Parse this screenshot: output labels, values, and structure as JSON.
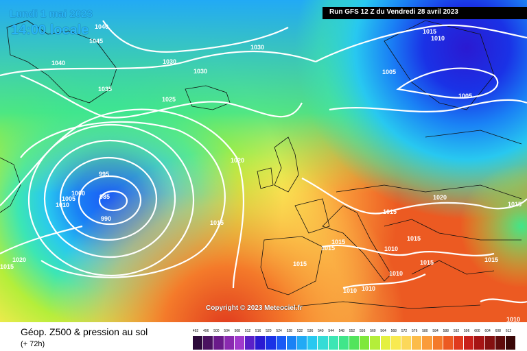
{
  "header": {
    "date": "Lundi 1 mai 2023",
    "hour": "14:00 locale",
    "run": "Run GFS 12 Z du Vendredi 28 avril 2023"
  },
  "copyright": "Copyright © 2023 Meteociel.fr",
  "footer": {
    "title": "Géop. Z500 & pression au sol",
    "subtitle": "(+ 72h)"
  },
  "legend": {
    "values": [
      "492",
      "496",
      "500",
      "504",
      "508",
      "512",
      "516",
      "520",
      "524",
      "528",
      "532",
      "536",
      "540",
      "544",
      "548",
      "552",
      "556",
      "560",
      "564",
      "568",
      "572",
      "576",
      "580",
      "584",
      "588",
      "592",
      "596",
      "600",
      "604",
      "608",
      "612"
    ],
    "colors": [
      "#2c0a3a",
      "#4a1260",
      "#6a1a8a",
      "#8a2ab0",
      "#a03acc",
      "#5a20c8",
      "#2a1ad2",
      "#1a32e6",
      "#1a5af5",
      "#1a82f5",
      "#22aaf5",
      "#28c8f0",
      "#35dcd6",
      "#3ce6b4",
      "#40e68a",
      "#52e45c",
      "#7ee83c",
      "#b4ee3a",
      "#e4f040",
      "#f8ea50",
      "#fcd85a",
      "#fcbc4a",
      "#fa9c3a",
      "#f47a2a",
      "#ec5a22",
      "#e03a1e",
      "#c8201a",
      "#a61414",
      "#841010",
      "#600c0c",
      "#3a0808"
    ]
  },
  "map": {
    "labels": [
      "1040",
      "1045",
      "1040",
      "1035",
      "1030",
      "1030",
      "1030",
      "1025",
      "1020",
      "1015",
      "995",
      "1000",
      "1005",
      "1010",
      "985",
      "990",
      "1015",
      "1020",
      "1015",
      "1010",
      "1015",
      "1015",
      "1015",
      "1010",
      "1010",
      "1015",
      "1015",
      "1020",
      "1015",
      "1015",
      "1010",
      "1005",
      "1005",
      "1015",
      "1010",
      "1010"
    ]
  }
}
